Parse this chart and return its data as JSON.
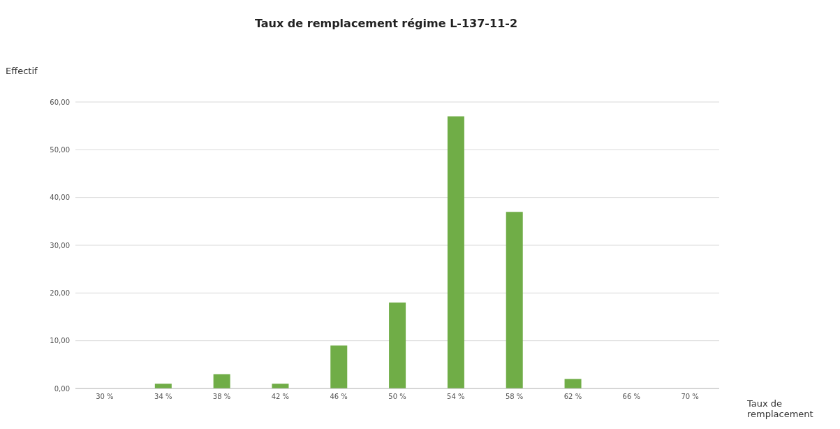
{
  "chart_data": {
    "type": "bar",
    "title": "Taux de remplacement régime L-137-11-2",
    "xlabel": "Taux de remplacement",
    "ylabel": "Effectif",
    "categories": [
      "30 %",
      "34 %",
      "38 %",
      "42 %",
      "46 %",
      "50 %",
      "54 %",
      "58 %",
      "62 %",
      "66 %",
      "70 %"
    ],
    "values": [
      0,
      1,
      3,
      1,
      9,
      18,
      57,
      37,
      2,
      0,
      0
    ],
    "color": "#70ad47",
    "ylim": [
      0,
      60
    ],
    "yticks": [
      {
        "value": 0,
        "label": "0,00"
      },
      {
        "value": 10,
        "label": "10,00"
      },
      {
        "value": 20,
        "label": "20,00"
      },
      {
        "value": 30,
        "label": "30,00"
      },
      {
        "value": 40,
        "label": "40,00"
      },
      {
        "value": 50,
        "label": "50,00"
      },
      {
        "value": 60,
        "label": "60,00"
      }
    ],
    "grid": "y"
  }
}
